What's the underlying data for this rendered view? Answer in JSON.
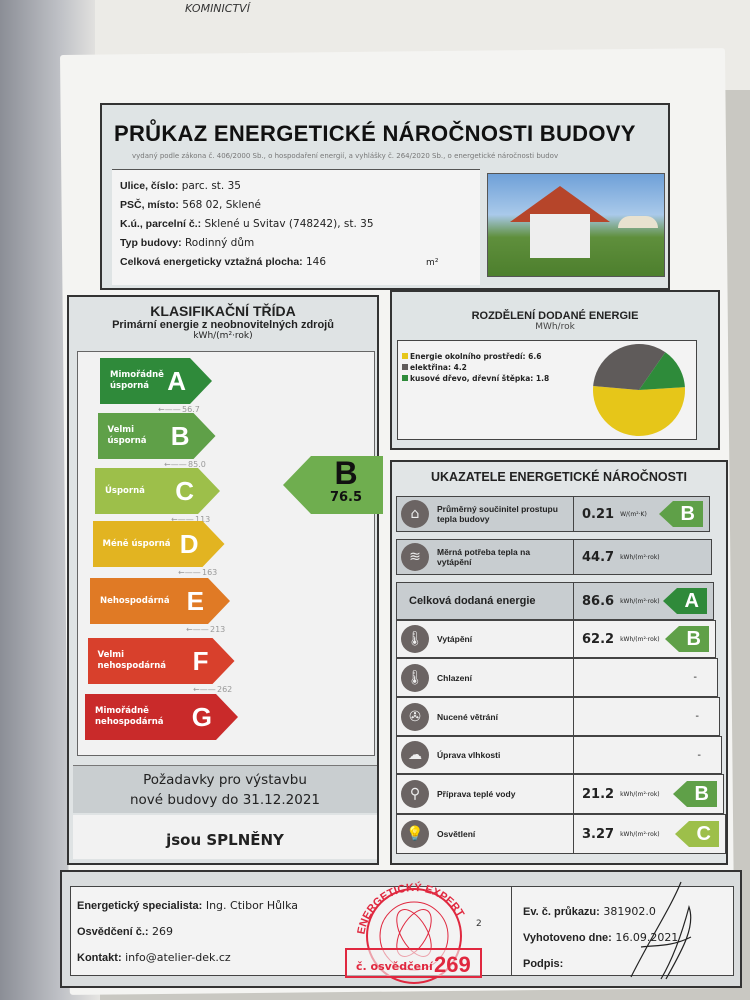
{
  "background_paper": {
    "text": "KOMINICTVÍ"
  },
  "header": {
    "title": "PRŮKAZ ENERGETICKÉ NÁROČNOSTI BUDOVY",
    "subtitle": "vydaný podle zákona č. 406/2000 Sb., o hospodaření energií, a vyhlášky č. 264/2020 Sb., o energetické náročnosti budov",
    "info": [
      {
        "label": "Ulice, číslo:",
        "value": "parc. st. 35"
      },
      {
        "label": "PSČ, místo:",
        "value": "568 02, Sklené"
      },
      {
        "label": "K.ú., parcelní č.:",
        "value": "Sklené u Svitav (748242), st. 35"
      },
      {
        "label": "Typ budovy:",
        "value": "Rodinný dům"
      },
      {
        "label": "Celková energeticky vztažná plocha:",
        "value": "146",
        "unit": "m²"
      }
    ]
  },
  "classification": {
    "title": "KLASIFIKAČNÍ TŘÍDA",
    "subtitle": "Primární energie z neobnovitelných zdrojů",
    "unit": "kWh/(m²·rok)",
    "classes": [
      {
        "letter": "A",
        "label": "Mimořádně úsporná",
        "color": "#2f8a3a",
        "limit": "56.7"
      },
      {
        "letter": "B",
        "label": "Velmi úsporná",
        "color": "#5fa048",
        "limit": "85.0"
      },
      {
        "letter": "C",
        "label": "Úsporná",
        "color": "#9dbf4a",
        "limit": "113"
      },
      {
        "letter": "D",
        "label": "Méně úsporná",
        "color": "#e2b421",
        "limit": "163"
      },
      {
        "letter": "E",
        "label": "Nehospodárná",
        "color": "#e07a25",
        "limit": "213"
      },
      {
        "letter": "F",
        "label": "Velmi nehospodárná",
        "color": "#d8402c",
        "limit": "262"
      },
      {
        "letter": "G",
        "label": "Mimořádně nehospodárná",
        "color": "#c92a2a"
      }
    ],
    "result": {
      "letter": "B",
      "value": "76.5",
      "color": "#6fae4f"
    },
    "requirement": {
      "line1": "Požadavky pro výstavbu",
      "line2": "nové budovy do 31.12.2021",
      "status": "jsou SPLNĚNY"
    }
  },
  "distribution": {
    "title": "ROZDĚLENÍ DODANÉ ENERGIE",
    "unit": "MWh/rok",
    "items": [
      {
        "label": "Energie okolního prostředí: 6.6",
        "value": 6.6,
        "color": "#e6c619"
      },
      {
        "label": "elektřina: 4.2",
        "value": 4.2,
        "color": "#5f5b5a"
      },
      {
        "label": "kusové dřevo, dřevní štěpka: 1.8",
        "value": 1.8,
        "color": "#2e8b3a"
      }
    ]
  },
  "indicators": {
    "title": "UKAZATELE ENERGETICKÉ NÁROČNOSTI",
    "rows": [
      {
        "icon": "house-icon",
        "glyph": "⌂",
        "label": "Průměrný součinitel prostupu tepla budovy",
        "value": "0.21",
        "unit": "W/(m²·K)",
        "class": "B",
        "color": "#5fa048"
      },
      {
        "icon": "heat-demand-icon",
        "glyph": "≋",
        "label": "Měrná potřeba tepla na vytápění",
        "value": "44.7",
        "unit": "kWh/(m²·rok)"
      },
      {
        "label": "Celková dodaná energie",
        "value": "86.6",
        "unit": "kWh/(m²·rok)",
        "class": "A",
        "color": "#2f8a3a",
        "big": true
      },
      {
        "icon": "heating-thermometer-icon",
        "glyph": "🌡",
        "label": "Vytápění",
        "value": "62.2",
        "unit": "kWh/(m²·rok)",
        "class": "B",
        "color": "#5fa048"
      },
      {
        "icon": "cooling-thermometer-icon",
        "glyph": "🌡",
        "label": "Chlazení",
        "value": "-"
      },
      {
        "icon": "fan-icon",
        "glyph": "✇",
        "label": "Nucené větrání",
        "value": "-"
      },
      {
        "icon": "humidity-icon",
        "glyph": "☁",
        "label": "Úprava vlhkosti",
        "value": "-"
      },
      {
        "icon": "faucet-icon",
        "glyph": "⚲",
        "label": "Příprava teplé vody",
        "value": "21.2",
        "unit": "kWh/(m²·rok)",
        "class": "B",
        "color": "#5fa048"
      },
      {
        "icon": "lightbulb-icon",
        "glyph": "💡",
        "label": "Osvětlení",
        "value": "3.27",
        "unit": "kWh/(m²·rok)",
        "class": "C",
        "color": "#9dbf4a"
      }
    ]
  },
  "footer": {
    "specialist_label": "Energetický specialista:",
    "specialist": "Ing. Ctibor Hůlka",
    "cert_label": "Osvědčení č.:",
    "cert": "269",
    "contact_label": "Kontakt:",
    "contact": "info@atelier-dek.cz",
    "ev_label": "Ev. č. průkazu:",
    "ev": "381902.0",
    "date_label": "Vyhotoveno dne:",
    "date": "16.09.2021",
    "sign_label": "Podpis:",
    "stamp": {
      "text": "ENERGETICKÝ EXPERT",
      "number": "269",
      "sub": "č. osvědčení",
      "color": "#e0283f"
    }
  }
}
